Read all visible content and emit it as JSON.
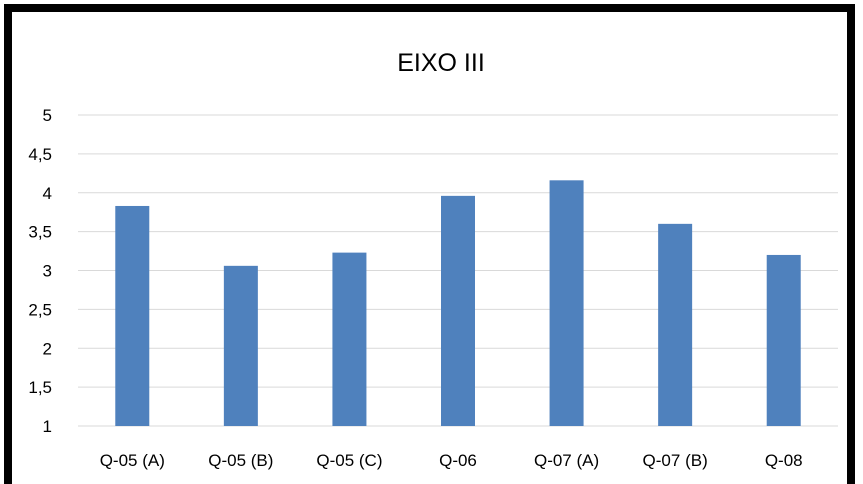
{
  "chart_data": {
    "type": "bar",
    "title": "EIXO III",
    "categories": [
      "Q-05 (A)",
      "Q-05 (B)",
      "Q-05 (C)",
      "Q-06",
      "Q-07 (A)",
      "Q-07 (B)",
      "Q-08"
    ],
    "values": [
      3.83,
      3.06,
      3.23,
      3.96,
      4.16,
      3.6,
      3.2
    ],
    "ylim": [
      1,
      5
    ],
    "yticks": [
      1,
      1.5,
      2,
      2.5,
      3,
      3.5,
      4,
      4.5,
      5
    ],
    "ytick_labels": [
      "1",
      "1,5",
      "2",
      "2,5",
      "3",
      "3,5",
      "4",
      "4,5",
      "5"
    ],
    "xlabel": "",
    "ylabel": "",
    "grid": true,
    "legend": "none",
    "bar_color": "#4f81bd"
  }
}
